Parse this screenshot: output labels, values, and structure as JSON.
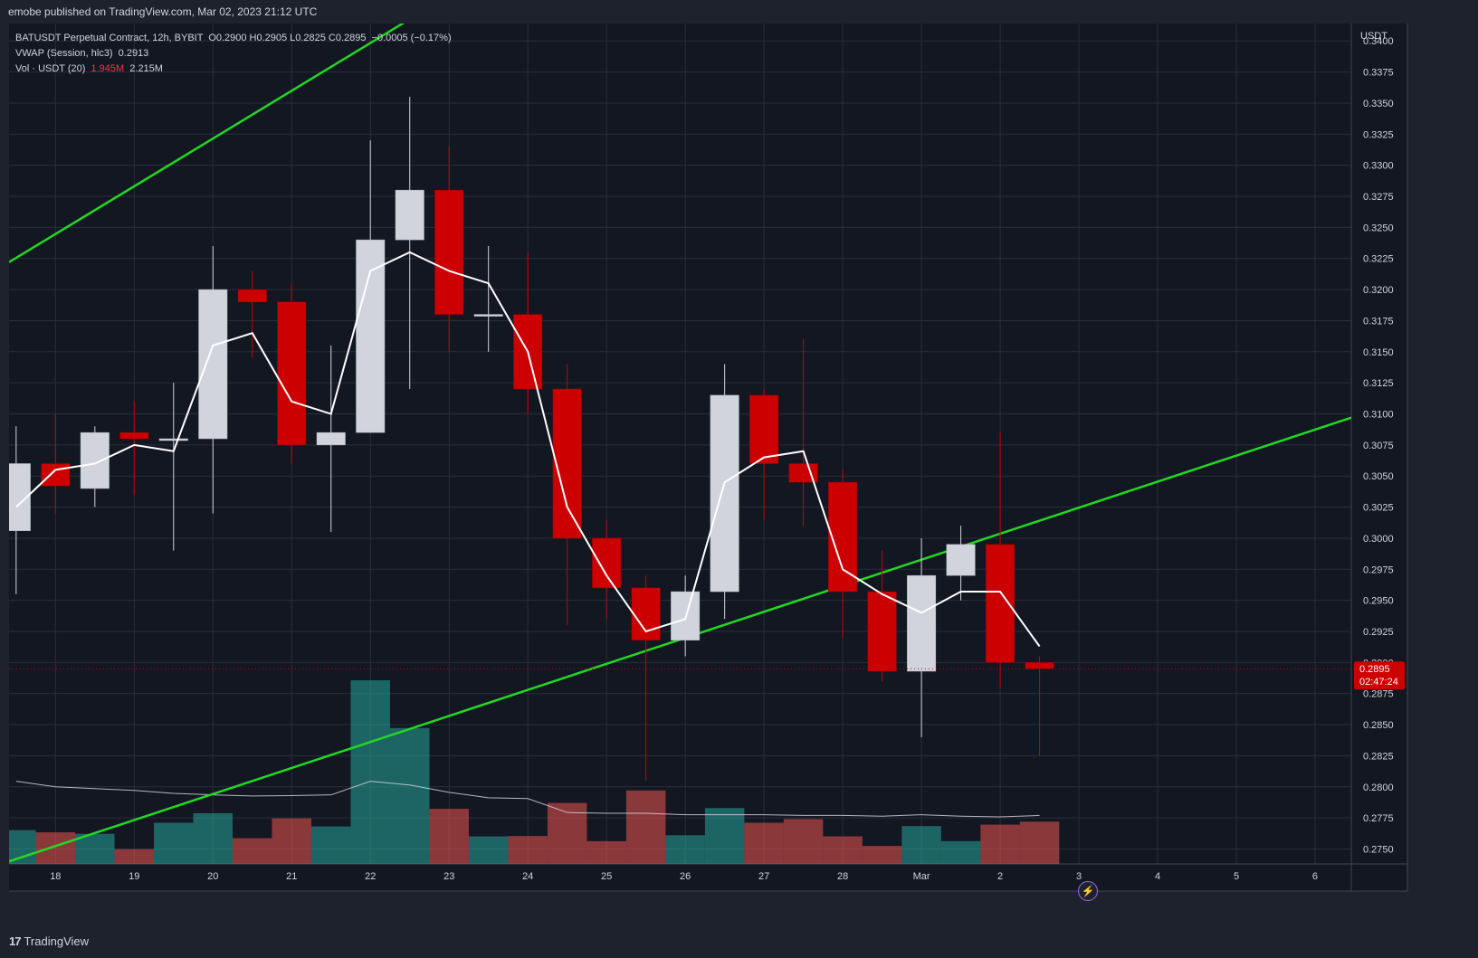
{
  "header": {
    "published": "emobe published on TradingView.com, Mar 02, 2023 21:12 UTC"
  },
  "legend": {
    "symbol": "BATUSDT Perpetual Contract, 12h, BYBIT",
    "ohlc": [
      {
        "label": "O",
        "value": "0.2900"
      },
      {
        "label": "H",
        "value": "0.2905"
      },
      {
        "label": "L",
        "value": "0.2825"
      },
      {
        "label": "C",
        "value": "0.2895"
      }
    ],
    "change": "−0.0005 (−0.17%)",
    "vwap_label": "VWAP (Session, hlc3)",
    "vwap_value": "0.2913",
    "vol_label": "Vol · USDT (20)",
    "vol_value": "1.945M",
    "vol_ma_value": "2.215M"
  },
  "price_label": {
    "price": "0.2895",
    "countdown": "02:47:24"
  },
  "footer": {
    "brand": "TradingView"
  },
  "colors": {
    "background": "#1e222d",
    "plot": "#131722",
    "grid": "#2a2e39",
    "up": "#d1d4dc",
    "down": "#cc0000",
    "vol_up": "#26a69a",
    "vol_down": "#ef5350",
    "trend": "#22d822",
    "vwap": "#ffffff",
    "last_price": "#cc0000"
  },
  "chart_data": {
    "type": "candlestick",
    "currency": "USDT",
    "x_ticks": [
      "18",
      "19",
      "20",
      "21",
      "22",
      "23",
      "24",
      "25",
      "26",
      "27",
      "28",
      "Mar",
      "2",
      "3",
      "4",
      "5",
      "6"
    ],
    "y_ticks": [
      0.275,
      0.2775,
      0.28,
      0.2825,
      0.285,
      0.2875,
      0.29,
      0.2925,
      0.295,
      0.2975,
      0.3,
      0.3025,
      0.305,
      0.3075,
      0.31,
      0.3125,
      0.315,
      0.3175,
      0.32,
      0.3225,
      0.325,
      0.3275,
      0.33,
      0.3325,
      0.335,
      0.3375,
      0.34
    ],
    "ylim": [
      0.2738,
      0.3414
    ],
    "xlim": [
      -0.59,
      16.46
    ],
    "candles": [
      {
        "t": -0.5,
        "o": 0.3006,
        "h": 0.309,
        "l": 0.2955,
        "c": 0.306,
        "vwap": 0.3025,
        "vol": 0.92
      },
      {
        "t": 0.0,
        "o": 0.306,
        "h": 0.31,
        "l": 0.302,
        "c": 0.3042,
        "vwap": 0.3055,
        "vol": 0.86
      },
      {
        "t": 0.5,
        "o": 0.304,
        "h": 0.309,
        "l": 0.3025,
        "c": 0.3085,
        "vwap": 0.306,
        "vol": 0.82
      },
      {
        "t": 1.0,
        "o": 0.3085,
        "h": 0.311,
        "l": 0.3035,
        "c": 0.308,
        "vwap": 0.3075,
        "vol": 0.4
      },
      {
        "t": 1.5,
        "o": 0.308,
        "h": 0.3125,
        "l": 0.299,
        "c": 0.308,
        "vwap": 0.307,
        "vol": 1.12
      },
      {
        "t": 2.0,
        "o": 0.308,
        "h": 0.3235,
        "l": 0.302,
        "c": 0.32,
        "vwap": 0.3155,
        "vol": 1.38
      },
      {
        "t": 2.5,
        "o": 0.32,
        "h": 0.3215,
        "l": 0.3145,
        "c": 0.319,
        "vwap": 0.3165,
        "vol": 0.7
      },
      {
        "t": 3.0,
        "o": 0.319,
        "h": 0.3205,
        "l": 0.306,
        "c": 0.3075,
        "vwap": 0.311,
        "vol": 1.24
      },
      {
        "t": 3.5,
        "o": 0.3075,
        "h": 0.3155,
        "l": 0.3005,
        "c": 0.3085,
        "vwap": 0.31,
        "vol": 1.02
      },
      {
        "t": 4.0,
        "o": 0.3085,
        "h": 0.332,
        "l": 0.3085,
        "c": 0.324,
        "vwap": 0.3215,
        "vol": 5.0
      },
      {
        "t": 4.5,
        "o": 0.324,
        "h": 0.3355,
        "l": 0.312,
        "c": 0.328,
        "vwap": 0.323,
        "vol": 3.7
      },
      {
        "t": 5.0,
        "o": 0.328,
        "h": 0.3315,
        "l": 0.315,
        "c": 0.318,
        "vwap": 0.3215,
        "vol": 1.5
      },
      {
        "t": 5.5,
        "o": 0.318,
        "h": 0.3235,
        "l": 0.315,
        "c": 0.318,
        "vwap": 0.3205,
        "vol": 0.75
      },
      {
        "t": 6.0,
        "o": 0.318,
        "h": 0.323,
        "l": 0.31,
        "c": 0.312,
        "vwap": 0.315,
        "vol": 0.76
      },
      {
        "t": 6.5,
        "o": 0.312,
        "h": 0.314,
        "l": 0.293,
        "c": 0.3,
        "vwap": 0.3025,
        "vol": 1.66
      },
      {
        "t": 7.0,
        "o": 0.3,
        "h": 0.3015,
        "l": 0.2935,
        "c": 0.296,
        "vwap": 0.297,
        "vol": 0.62
      },
      {
        "t": 7.5,
        "o": 0.296,
        "h": 0.297,
        "l": 0.2805,
        "c": 0.2918,
        "vwap": 0.2925,
        "vol": 2.0
      },
      {
        "t": 8.0,
        "o": 0.2918,
        "h": 0.297,
        "l": 0.2905,
        "c": 0.2957,
        "vwap": 0.2935,
        "vol": 0.78
      },
      {
        "t": 8.5,
        "o": 0.2957,
        "h": 0.314,
        "l": 0.2935,
        "c": 0.3115,
        "vwap": 0.3045,
        "vol": 1.52
      },
      {
        "t": 9.0,
        "o": 0.3115,
        "h": 0.312,
        "l": 0.3015,
        "c": 0.306,
        "vwap": 0.3065,
        "vol": 1.12
      },
      {
        "t": 9.5,
        "o": 0.306,
        "h": 0.316,
        "l": 0.301,
        "c": 0.3045,
        "vwap": 0.307,
        "vol": 1.22
      },
      {
        "t": 10.0,
        "o": 0.3045,
        "h": 0.3055,
        "l": 0.292,
        "c": 0.2957,
        "vwap": 0.2975,
        "vol": 0.75
      },
      {
        "t": 10.5,
        "o": 0.2957,
        "h": 0.299,
        "l": 0.2885,
        "c": 0.2893,
        "vwap": 0.2955,
        "vol": 0.49
      },
      {
        "t": 11.0,
        "o": 0.2893,
        "h": 0.3,
        "l": 0.284,
        "c": 0.297,
        "vwap": 0.294,
        "vol": 1.03
      },
      {
        "t": 11.5,
        "o": 0.297,
        "h": 0.301,
        "l": 0.295,
        "c": 0.2995,
        "vwap": 0.2957,
        "vol": 0.62
      },
      {
        "t": 12.0,
        "o": 0.2995,
        "h": 0.3085,
        "l": 0.288,
        "c": 0.29,
        "vwap": 0.2957,
        "vol": 1.07
      },
      {
        "t": 12.5,
        "o": 0.29,
        "h": 0.2905,
        "l": 0.2825,
        "c": 0.2895,
        "vwap": 0.2913,
        "vol": 1.15
      }
    ],
    "vol_ma": [
      2.25,
      2.1,
      2.05,
      2.0,
      1.92,
      1.88,
      1.85,
      1.86,
      1.88,
      2.25,
      2.15,
      1.95,
      1.8,
      1.78,
      1.4,
      1.38,
      1.38,
      1.34,
      1.34,
      1.34,
      1.32,
      1.32,
      1.3,
      1.34,
      1.3,
      1.28,
      1.32
    ],
    "trendlines": [
      {
        "name": "upper",
        "points": [
          [
            -0.59,
            0.3222
          ],
          [
            8.6,
            0.3575
          ]
        ]
      },
      {
        "name": "lower",
        "points": [
          [
            -0.59,
            0.274
          ],
          [
            16.46,
            0.3097
          ]
        ]
      }
    ],
    "last_price": 0.2895
  }
}
